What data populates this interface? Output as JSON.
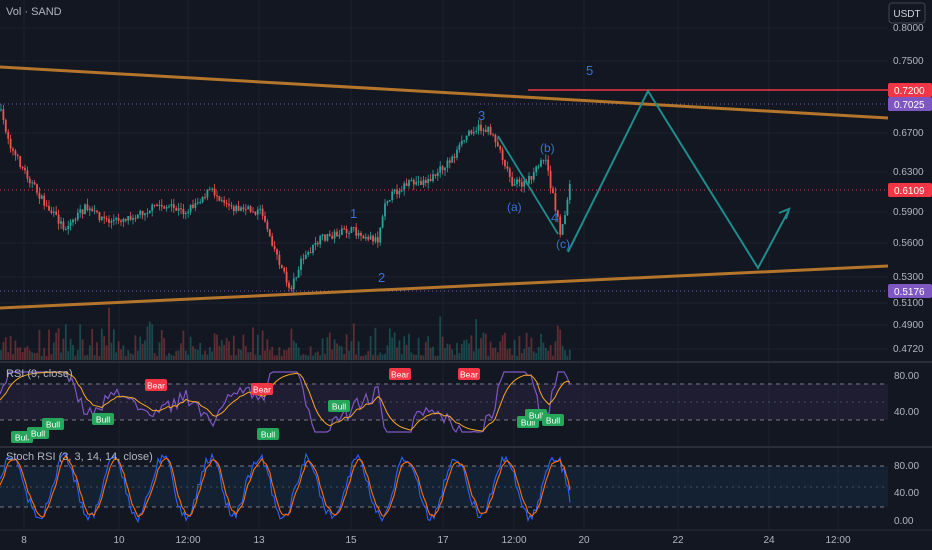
{
  "header": {
    "volume_label": "Vol · SAND",
    "currency_button": "USDT"
  },
  "price_axis": {
    "ticks": [
      "0.8000",
      "0.7500",
      "0.6700",
      "0.6300",
      "0.5900",
      "0.5600",
      "0.5300",
      "0.5100",
      "0.4900",
      "0.4720"
    ],
    "badges": [
      {
        "value": "0.7200",
        "color": "#f23645"
      },
      {
        "value": "0.7025",
        "color": "#7e57c2"
      },
      {
        "value": "0.6109",
        "color": "#f23645"
      },
      {
        "value": "0.5176",
        "color": "#7e57c2"
      }
    ]
  },
  "time_axis": {
    "ticks": [
      "8",
      "10",
      "12:00",
      "13",
      "15",
      "17",
      "12:00",
      "20",
      "22",
      "24",
      "12:00"
    ]
  },
  "wave_labels": [
    "1",
    "2",
    "3",
    "4",
    "5",
    "(a)",
    "(b)",
    "(c)"
  ],
  "rsi_pane": {
    "title": "RSI (9, close)",
    "axis_ticks": [
      "80.00",
      "40.00"
    ],
    "signals": [
      "Bull",
      "Bull",
      "Bull",
      "Bull",
      "Bear",
      "Bear",
      "Bull",
      "Bull",
      "Bear",
      "Bear",
      "Bull",
      "Bull",
      "Bull"
    ]
  },
  "stoch_pane": {
    "title": "Stoch RSI (3, 3, 14, 14, close)",
    "axis_ticks": [
      "80.00",
      "40.00",
      "0.00"
    ]
  },
  "colors": {
    "background": "#131722",
    "up_candle": "#26a69a",
    "down_candle": "#ef5350",
    "trendline": "#b5752a",
    "projection": "#1e8c8c",
    "rsi_line": "#7e57c2",
    "signal_line": "#f5a623",
    "bull_tag": "#26a65b",
    "bear_tag": "#f23645",
    "wave_text": "#3b6fd4"
  },
  "chart_data": {
    "type": "candlestick",
    "price_levels": [
      0.72,
      0.7025,
      0.6109,
      0.5176
    ],
    "last_price": 0.6109,
    "wave_count": {
      "impulse": [
        "1",
        "2",
        "3",
        "4",
        "5"
      ],
      "correction": [
        "(a)",
        "(b)",
        "(c)"
      ]
    },
    "rsi_levels": [
      80,
      40
    ],
    "stoch_levels": [
      80,
      40,
      0
    ]
  }
}
